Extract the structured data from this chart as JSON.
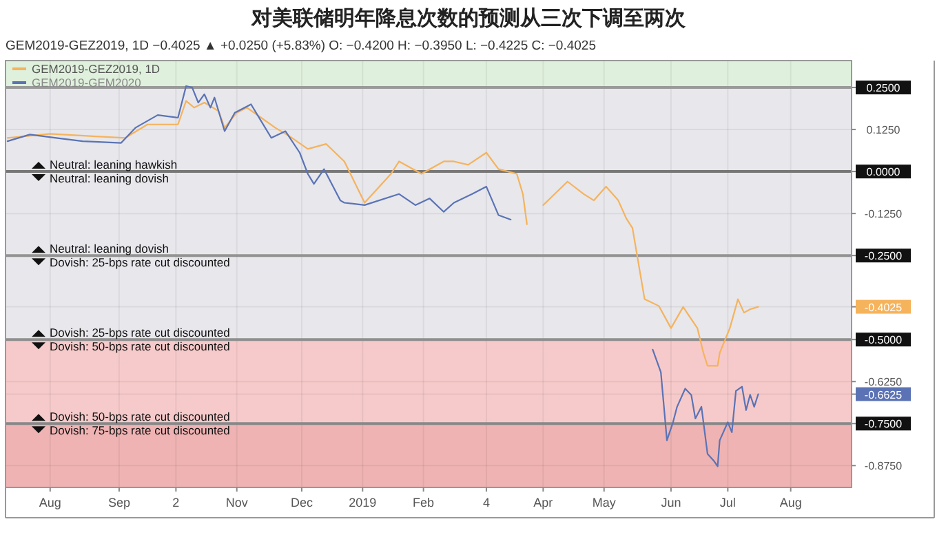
{
  "chart_data": {
    "type": "line",
    "title": "对美联储明年降息次数的预测从三次下调至两次",
    "subtitle": "GEM2019-GEZ2019, 1D −0.4025 ▲ +0.0250 (+5.83%) O: −0.4200 H: −0.3950 L: −0.4225 C: −0.4025",
    "series": [
      {
        "name": "GEM2019-GEZ2019, 1D",
        "color": "#f5b35c",
        "x": [
          "2018-07-11",
          "2018-08-01",
          "2018-08-22",
          "2018-09-07",
          "2018-09-18",
          "2018-10-03",
          "2018-10-07",
          "2018-10-11",
          "2018-10-16",
          "2018-10-23",
          "2018-10-26",
          "2018-11-01",
          "2018-11-06",
          "2018-11-13",
          "2018-11-20",
          "2018-11-27",
          "2018-12-06",
          "2018-12-15",
          "2018-12-24",
          "2019-01-03",
          "2019-01-16",
          "2019-01-20",
          "2019-01-31",
          "2019-02-11",
          "2019-02-16",
          "2019-02-23",
          "2019-03-04",
          "2019-03-10",
          "2019-03-19",
          "2019-03-22",
          "2019-03-24",
          "2019-03-28",
          "2019-04-01",
          "2019-04-13",
          "2019-04-21",
          "2019-04-26",
          "2019-05-02",
          "2019-05-08",
          "2019-05-12",
          "2019-05-15",
          "2019-05-21",
          "2019-05-28",
          "2019-06-03",
          "2019-06-09",
          "2019-06-12",
          "2019-06-16",
          "2019-06-19",
          "2019-06-21",
          "2019-06-26",
          "2019-06-27",
          "2019-07-02",
          "2019-07-06",
          "2019-07-09",
          "2019-07-12",
          "2019-07-16"
        ],
        "values": [
          0.1,
          0.112,
          0.105,
          0.1,
          0.14,
          0.14,
          0.21,
          0.19,
          0.205,
          0.18,
          0.13,
          0.175,
          0.19,
          0.16,
          0.13,
          0.105,
          0.067,
          0.082,
          0.03,
          -0.093,
          -0.007,
          0.03,
          -0.007,
          0.03,
          0.03,
          0.02,
          0.056,
          0.007,
          -0.007,
          -0.067,
          -0.157,
          null,
          -0.1,
          -0.03,
          -0.067,
          -0.086,
          -0.045,
          -0.086,
          -0.14,
          -0.168,
          -0.38,
          -0.4,
          -0.466,
          -0.403,
          -0.43,
          -0.466,
          -0.54,
          -0.578,
          -0.578,
          -0.54,
          -0.466,
          -0.38,
          -0.42,
          -0.41,
          -0.4025
        ]
      },
      {
        "name": "GEM2019-GEM2020",
        "color": "#5b73b5",
        "x": [
          "2018-07-11",
          "2018-07-22",
          "2018-08-04",
          "2018-08-17",
          "2018-09-05",
          "2018-09-12",
          "2018-09-23",
          "2018-10-03",
          "2018-10-07",
          "2018-10-10",
          "2018-10-13",
          "2018-10-16",
          "2018-10-19",
          "2018-10-21",
          "2018-10-26",
          "2018-10-31",
          "2018-11-08",
          "2018-11-13",
          "2018-11-18",
          "2018-11-25",
          "2018-12-02",
          "2018-12-06",
          "2018-12-09",
          "2018-12-14",
          "2018-12-22",
          "2018-12-24",
          "2019-01-03",
          "2019-01-20",
          "2019-01-28",
          "2019-02-04",
          "2019-02-11",
          "2019-02-16",
          "2019-02-25",
          "2019-03-04",
          "2019-03-10",
          "2019-03-16",
          "2019-04-15",
          "2019-05-25",
          "2019-05-29",
          "2019-06-01",
          "2019-06-04",
          "2019-06-06",
          "2019-06-10",
          "2019-06-13",
          "2019-06-15",
          "2019-06-18",
          "2019-06-21",
          "2019-06-24",
          "2019-06-26",
          "2019-06-27",
          "2019-07-01",
          "2019-07-03",
          "2019-07-05",
          "2019-07-08",
          "2019-07-10",
          "2019-07-12",
          "2019-07-14",
          "2019-07-16"
        ],
        "values": [
          0.09,
          0.11,
          0.1,
          0.09,
          0.085,
          0.13,
          0.168,
          0.16,
          0.254,
          0.25,
          0.205,
          0.23,
          0.19,
          0.22,
          0.12,
          0.175,
          0.2,
          0.15,
          0.1,
          0.12,
          0.056,
          -0.007,
          -0.037,
          0.007,
          -0.086,
          -0.093,
          -0.1,
          -0.067,
          -0.1,
          -0.08,
          -0.12,
          -0.093,
          -0.067,
          -0.045,
          -0.13,
          -0.143,
          null,
          -0.53,
          -0.597,
          -0.8,
          -0.746,
          -0.7,
          -0.646,
          -0.665,
          -0.735,
          -0.7,
          -0.84,
          -0.86,
          -0.877,
          -0.8,
          -0.746,
          -0.776,
          -0.653,
          -0.64,
          -0.71,
          -0.664,
          -0.7,
          -0.6625
        ]
      }
    ],
    "xlim": [
      "2018-07-10",
      "2019-08-31"
    ],
    "xticks": [
      {
        "value": "2018-08-01",
        "label": "Aug"
      },
      {
        "value": "2018-09-04",
        "label": "Sep"
      },
      {
        "value": "2018-10-02",
        "label": "2"
      },
      {
        "value": "2018-11-01",
        "label": "Nov"
      },
      {
        "value": "2018-12-03",
        "label": "Dec"
      },
      {
        "value": "2019-01-02",
        "label": "2019"
      },
      {
        "value": "2019-02-01",
        "label": "Feb"
      },
      {
        "value": "2019-03-04",
        "label": "4"
      },
      {
        "value": "2019-04-01",
        "label": "Apr"
      },
      {
        "value": "2019-05-01",
        "label": "May"
      },
      {
        "value": "2019-06-03",
        "label": "Jun"
      },
      {
        "value": "2019-07-01",
        "label": "Jul"
      },
      {
        "value": "2019-08-01",
        "label": "Aug"
      }
    ],
    "ylim": [
      -0.94,
      0.33
    ],
    "yticks": [
      {
        "value": 0.25,
        "label": "0.2500"
      },
      {
        "value": 0.125,
        "label": "0.1250"
      },
      {
        "value": 0,
        "label": "0.0000"
      },
      {
        "value": -0.125,
        "label": "-0.1250"
      },
      {
        "value": -0.25,
        "label": "-0.2500"
      },
      {
        "value": -0.4025,
        "label": "-0.4025"
      },
      {
        "value": -0.5,
        "label": "-0.5000"
      },
      {
        "value": -0.625,
        "label": "-0.6250"
      },
      {
        "value": -0.6625,
        "label": "-0.6625"
      },
      {
        "value": -0.75,
        "label": "-0.7500"
      },
      {
        "value": -0.875,
        "label": "-0.8750"
      }
    ],
    "bands": [
      {
        "axis": "y",
        "from": 0.25,
        "to": 0.33,
        "color": "#dff0dc"
      },
      {
        "axis": "y",
        "from": -0.5,
        "to": 0.25,
        "color": "#e7e7ec"
      },
      {
        "axis": "y",
        "from": -0.75,
        "to": -0.5,
        "color": "#f6caca"
      },
      {
        "axis": "y",
        "from": -0.94,
        "to": -0.75,
        "color": "#efb3b3"
      }
    ],
    "ref_lines": [
      {
        "axis": "y",
        "value": 0.25,
        "color": "#9a9a9a"
      },
      {
        "axis": "y",
        "value": 0,
        "color": "#777777"
      },
      {
        "axis": "y",
        "value": -0.25,
        "color": "#939393"
      },
      {
        "axis": "y",
        "value": -0.5,
        "color": "#8e8e8e"
      },
      {
        "axis": "y",
        "value": -0.75,
        "color": "#888888"
      }
    ],
    "annotations": [
      "Neutral: leaning hawkish",
      "Neutral: leaning dovish",
      "Neutral: leaning dovish",
      "Dovish: 25-bps rate cut discounted",
      "Dovish: 25-bps rate cut discounted",
      "Dovish: 50-bps rate cut discounted",
      "Dovish: 50-bps rate cut discounted",
      "Dovish: 75-bps rate cut discounted"
    ],
    "grid": true,
    "legend": "top left",
    "line_style": "solid"
  }
}
